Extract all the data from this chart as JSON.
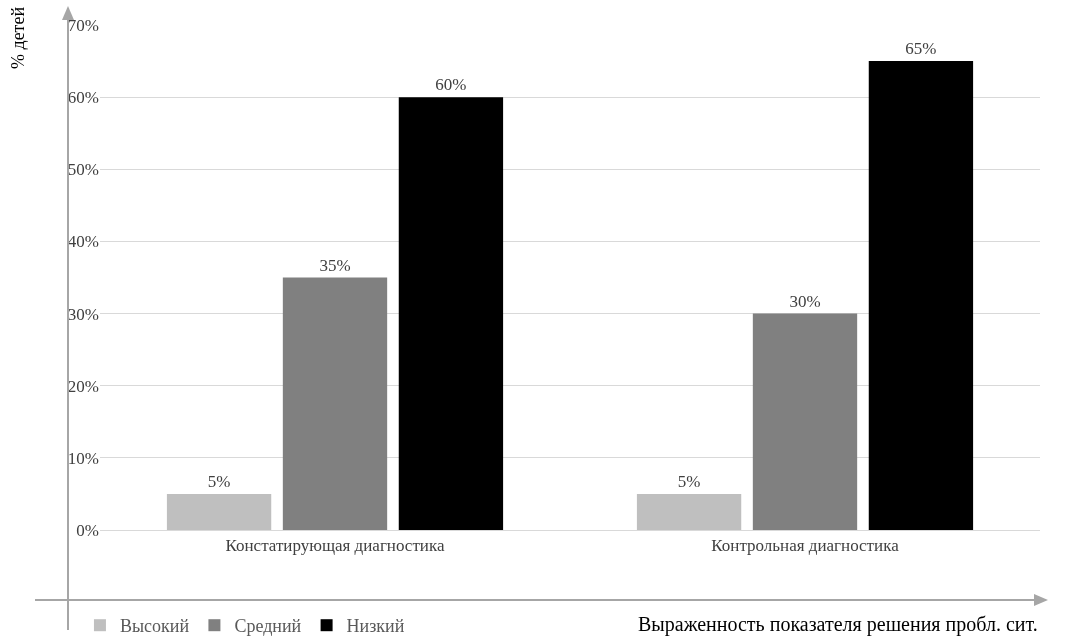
{
  "chart_data": {
    "type": "bar",
    "xlabel": "Выраженность показателя решения пробл. сит.",
    "ylabel": "% детей",
    "categories": [
      "Констатирующая диагностика",
      "Контрольная диагностика"
    ],
    "series": [
      {
        "name": "Высокий",
        "color": "#bfbfbf",
        "values": [
          5,
          5
        ],
        "value_labels": [
          "5%",
          "5%"
        ]
      },
      {
        "name": "Средний",
        "color": "#808080",
        "values": [
          35,
          30
        ],
        "value_labels": [
          "35%",
          "30%"
        ]
      },
      {
        "name": "Низкий",
        "color": "#000000",
        "values": [
          60,
          65
        ],
        "value_labels": [
          "60%",
          "65%"
        ]
      }
    ],
    "ylim": [
      0,
      70
    ],
    "yticks": [
      {
        "value": 0,
        "label": "0%"
      },
      {
        "value": 10,
        "label": "10%"
      },
      {
        "value": 20,
        "label": "20%"
      },
      {
        "value": 30,
        "label": "30%"
      },
      {
        "value": 40,
        "label": "40%"
      },
      {
        "value": 50,
        "label": "50%"
      },
      {
        "value": 60,
        "label": "60%"
      },
      {
        "value": 70,
        "label": "70%"
      }
    ],
    "grid": "y",
    "legend": "bottom left"
  }
}
